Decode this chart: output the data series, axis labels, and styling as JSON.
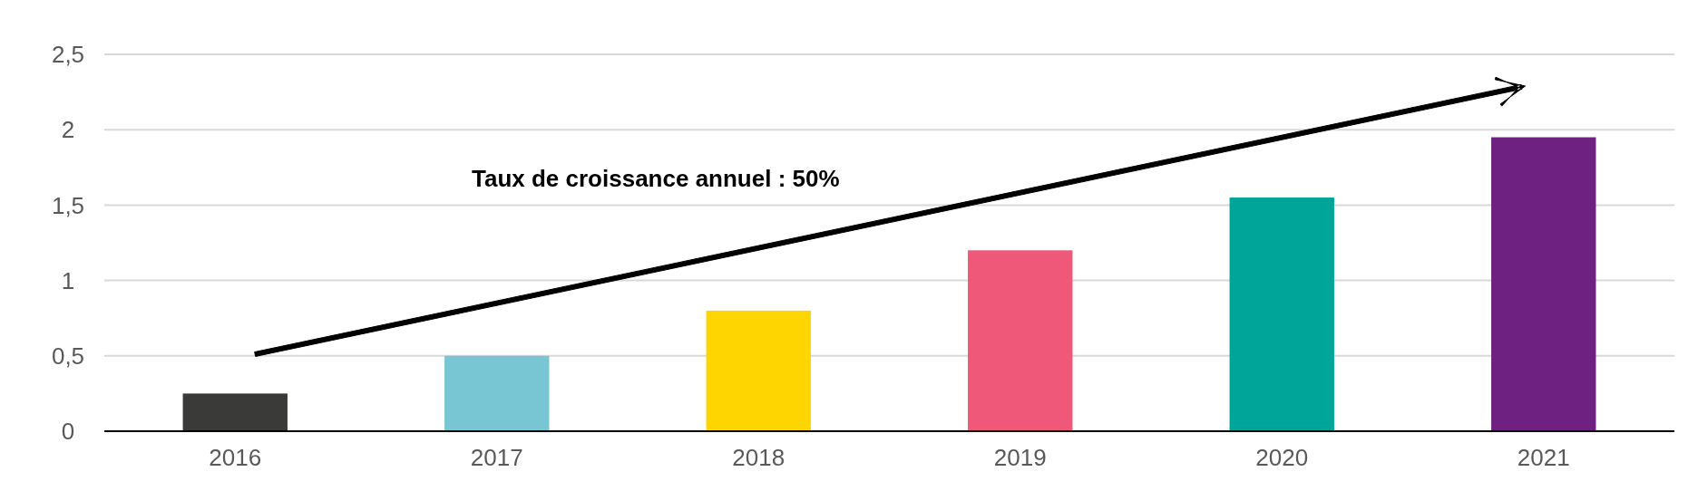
{
  "chart_data": {
    "type": "bar",
    "categories": [
      "2016",
      "2017",
      "2018",
      "2019",
      "2020",
      "2021"
    ],
    "values": [
      0.25,
      0.5,
      0.8,
      1.2,
      1.55,
      1.95
    ],
    "colors": [
      "#3a3b38",
      "#78c5d3",
      "#ffd500",
      "#f0587a",
      "#00a59a",
      "#6e2180"
    ],
    "ylim": [
      0,
      2.5
    ],
    "yticks": [
      0,
      {
        "value": 0.5,
        "label": "0,5"
      },
      1,
      {
        "value": 1.5,
        "label": "1,5"
      },
      2,
      {
        "value": 2.5,
        "label": "2,5"
      }
    ],
    "grid": "y",
    "annotations": [
      "Taux de croissance annuel : 50%"
    ]
  }
}
